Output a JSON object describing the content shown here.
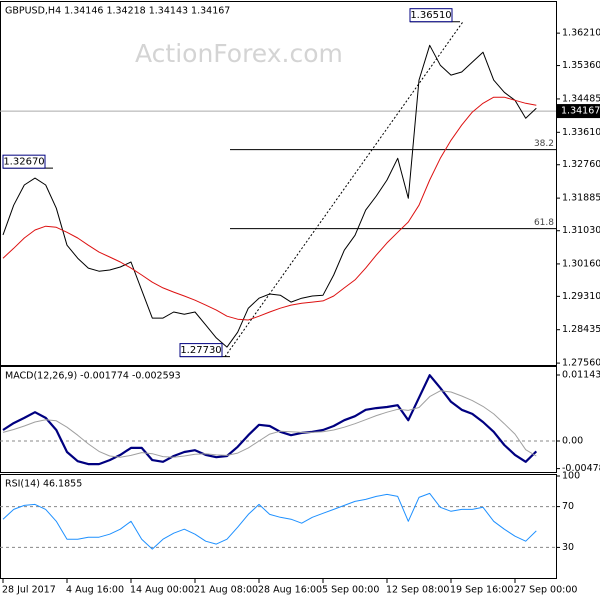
{
  "chart_data": [
    {
      "type": "line",
      "title": "GBPUSD,H4  1.34146 1.34218 1.34143 1.34167",
      "watermark": "ActionForex.com",
      "ylim": [
        1.2751,
        1.37
      ],
      "yticks": [
        {
          "value": 1.3621,
          "label": "1.36210"
        },
        {
          "value": 1.3536,
          "label": "1.35360"
        },
        1.34485,
        {
          "value": 1.3361,
          "label": "1.33610"
        },
        {
          "value": 1.3276,
          "label": "1.32760"
        },
        1.31885,
        {
          "value": 1.3103,
          "label": "1.31030"
        },
        {
          "value": 1.3016,
          "label": "1.30160"
        },
        {
          "value": 1.2931,
          "label": "1.29310"
        },
        1.28435,
        {
          "value": 1.2756,
          "label": "1.27560"
        }
      ],
      "last_price": 1.34167,
      "annotations": [
        {
          "value": 1.3267,
          "label": "1.32670"
        },
        {
          "value": 1.2773,
          "label": "1.27730"
        },
        {
          "value": 1.3651,
          "label": "1.36510"
        }
      ],
      "fib": [
        {
          "ratio": 38.2,
          "level": 1.33156
        },
        {
          "ratio": 61.8,
          "level": 1.31084
        }
      ],
      "series": [
        {
          "color": "#000000",
          "values": [
            1.3092,
            1.317,
            1.3223,
            1.3241,
            1.3223,
            1.3162,
            1.3065,
            1.3031,
            1.3005,
            1.2997,
            1.3,
            1.3008,
            1.3021,
            1.2947,
            1.2874,
            1.2874,
            1.289,
            1.2884,
            1.289,
            1.2856,
            1.2822,
            1.2798,
            1.2837,
            1.29,
            1.2926,
            1.2937,
            1.2934,
            1.2916,
            1.2926,
            1.2932,
            1.2934,
            1.2987,
            1.3052,
            1.3091,
            1.3157,
            1.3194,
            1.3236,
            1.3293,
            1.3188,
            1.3498,
            1.3589,
            1.3537,
            1.3511,
            1.3519,
            1.3545,
            1.3571,
            1.3498,
            1.3466,
            1.3445,
            1.3398,
            1.3424
          ]
        },
        {
          "color": "#dd1111",
          "values": [
            1.3031,
            1.3057,
            1.3084,
            1.3105,
            1.3115,
            1.3112,
            1.3099,
            1.3084,
            1.3065,
            1.3047,
            1.3034,
            1.3021,
            1.3005,
            1.2987,
            1.2968,
            1.2953,
            1.2942,
            1.2932,
            1.2921,
            1.2908,
            1.2895,
            1.2879,
            1.2871,
            1.2869,
            1.2879,
            1.289,
            1.29,
            1.2908,
            1.2913,
            1.2916,
            1.2919,
            1.2932,
            1.2953,
            1.2974,
            1.3005,
            1.3039,
            1.3071,
            1.3099,
            1.3126,
            1.317,
            1.3236,
            1.3293,
            1.334,
            1.338,
            1.3414,
            1.3437,
            1.3453,
            1.3453,
            1.3445,
            1.3437,
            1.3432
          ]
        }
      ]
    },
    {
      "type": "line",
      "title": "MACD(12,26,9) -0.001774 -0.002593",
      "ylim": [
        -0.00537,
        0.01265
      ],
      "yticks": [
        0.011437,
        {
          "value": 0,
          "label": "0.00"
        },
        -0.004782
      ],
      "hlines": [
        0
      ],
      "series": [
        {
          "color": "#000080",
          "width": 2.2,
          "values": [
            0.0019,
            0.0031,
            0.004,
            0.005,
            0.004,
            0.0019,
            -0.0019,
            -0.0035,
            -0.004,
            -0.004,
            -0.0033,
            -0.0024,
            -0.0012,
            -0.0012,
            -0.0033,
            -0.0036,
            -0.0026,
            -0.0019,
            -0.0016,
            -0.0024,
            -0.0028,
            -0.0026,
            -0.001,
            0.001,
            0.0028,
            0.0026,
            0.0016,
            0.001,
            0.0014,
            0.0016,
            0.0019,
            0.0026,
            0.0036,
            0.0043,
            0.0054,
            0.0057,
            0.0059,
            0.0062,
            0.0036,
            0.0075,
            0.0114,
            0.0092,
            0.0068,
            0.0054,
            0.0047,
            0.0033,
            0.0016,
            -0.0007,
            -0.0024,
            -0.0036,
            -0.0018
          ]
        },
        {
          "color": "#a0a0a0",
          "width": 1,
          "values": [
            0.0015,
            0.002,
            0.0026,
            0.0033,
            0.0037,
            0.0035,
            0.0024,
            0.001,
            -0.0005,
            -0.0018,
            -0.0026,
            -0.0028,
            -0.0025,
            -0.002,
            -0.0022,
            -0.0027,
            -0.0028,
            -0.0026,
            -0.0023,
            -0.0022,
            -0.0024,
            -0.0025,
            -0.0021,
            -0.0012,
            0.0,
            0.0012,
            0.0017,
            0.0016,
            0.0015,
            0.0015,
            0.0016,
            0.0019,
            0.0024,
            0.003,
            0.0037,
            0.0044,
            0.005,
            0.0055,
            0.0053,
            0.0058,
            0.0077,
            0.0087,
            0.0085,
            0.0078,
            0.007,
            0.006,
            0.0047,
            0.003,
            0.0012,
            -0.0015,
            -0.0026
          ]
        }
      ]
    },
    {
      "type": "line",
      "title": "RSI(14) 46.1855",
      "ylim": [
        0,
        100
      ],
      "yticks": [
        100,
        70,
        30
      ],
      "hlines": [
        70,
        30
      ],
      "categories": [
        "28 Jul 2017",
        null,
        null,
        null,
        null,
        null,
        "4 Aug 16:00",
        null,
        null,
        null,
        null,
        null,
        "14 Aug 00:00",
        null,
        null,
        null,
        null,
        null,
        "21 Aug 08:00",
        null,
        null,
        null,
        null,
        null,
        "28 Aug 16:00",
        null,
        null,
        null,
        null,
        null,
        "5 Sep 00:00",
        null,
        null,
        null,
        null,
        null,
        "12 Sep 08:00",
        null,
        null,
        null,
        null,
        null,
        "19 Sep 16:00",
        null,
        null,
        null,
        null,
        null,
        "27 Sep 00:00",
        null,
        null
      ],
      "series": [
        {
          "color": "#1e90ff",
          "width": 1,
          "values": [
            57.6,
            67.3,
            71.2,
            72.2,
            67.3,
            55.6,
            38.0,
            38.0,
            40.0,
            40.0,
            42.9,
            47.8,
            55.6,
            38.0,
            28.3,
            38.0,
            43.9,
            47.8,
            42.9,
            36.1,
            33.2,
            38.0,
            49.8,
            62.4,
            72.2,
            62.4,
            59.5,
            57.6,
            53.7,
            59.5,
            63.4,
            67.3,
            71.2,
            75.1,
            77.1,
            80.0,
            82.0,
            80.0,
            55.6,
            79.0,
            82.9,
            69.3,
            65.4,
            67.3,
            67.3,
            69.3,
            55.6,
            47.8,
            41.0,
            36.1,
            46.2
          ]
        }
      ]
    }
  ]
}
